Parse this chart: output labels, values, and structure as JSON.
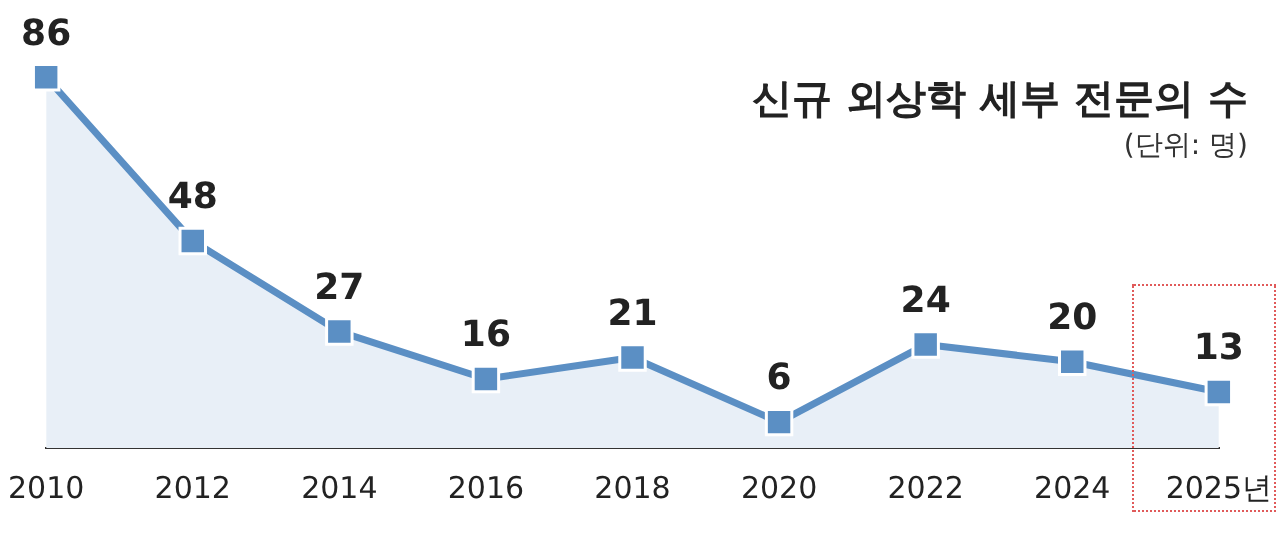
{
  "chart_data": {
    "type": "area",
    "title": "신규 외상학 세부 전문의 수",
    "subtitle": "(단위: 명)",
    "categories": [
      "2010",
      "2012",
      "2014",
      "2016",
      "2018",
      "2020",
      "2022",
      "2024",
      "2025년"
    ],
    "series": [
      {
        "color": "#5b8fc4",
        "values": [
          86,
          48,
          27,
          16,
          21,
          6,
          24,
          20,
          13
        ]
      }
    ],
    "data_labels": true,
    "marker": "square",
    "grid": false,
    "legend": false,
    "tick_labels": "x"
  }
}
